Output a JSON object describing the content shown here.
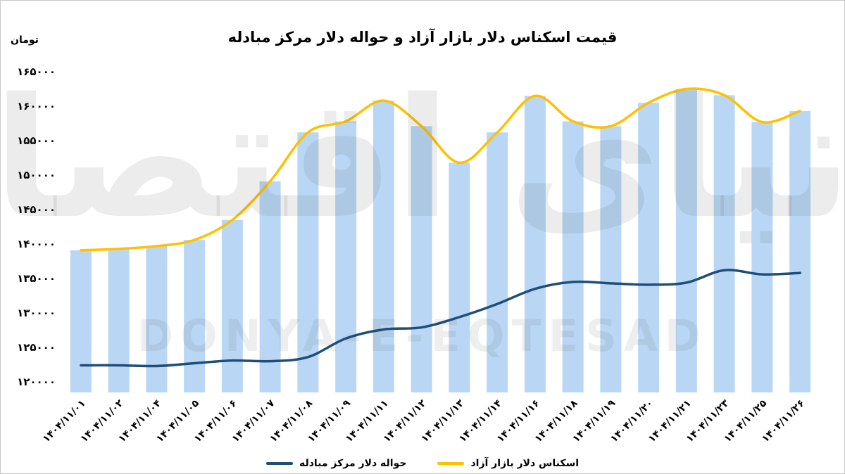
{
  "chart": {
    "title": "قیمت اسکناس دلار بازار آزاد و حواله دلار مرکز مبادله",
    "unit_label": "تومان"
  },
  "watermark": {
    "fa": "دنیای اقتصاد",
    "en": "DONYA-E-EQTESAD"
  },
  "chart_data": {
    "type": "bar",
    "title": "قیمت اسکناس دلار بازار آزاد و حواله دلار مرکز مبادله",
    "ylabel": "تومان",
    "ylim": [
      120000,
      165000
    ],
    "y_ticks": [
      165000,
      160000,
      155000,
      150000,
      145000,
      140000,
      135000,
      130000,
      125000,
      120000
    ],
    "grid": false,
    "legend_position": "bottom",
    "categories": [
      "۱۴۰۴/۱۱/۰۱",
      "۱۴۰۴/۱۱/۰۲",
      "۱۴۰۴/۱۱/۰۴",
      "۱۴۰۴/۱۱/۰۵",
      "۱۴۰۴/۱۱/۰۶",
      "۱۴۰۴/۱۱/۰۷",
      "۱۴۰۴/۱۱/۰۸",
      "۱۴۰۴/۱۱/۰۹",
      "۱۴۰۴/۱۱/۱۱",
      "۱۴۰۴/۱۱/۱۲",
      "۱۴۰۴/۱۱/۱۳",
      "۱۴۰۴/۱۱/۱۴",
      "۱۴۰۴/۱۱/۱۶",
      "۱۴۰۴/۱۱/۱۸",
      "۱۴۰۴/۱۱/۱۹",
      "۱۴۰۴/۱۱/۲۰",
      "۱۴۰۴/۱۱/۲۱",
      "۱۴۰۴/۱۱/۲۳",
      "۱۴۰۴/۱۱/۲۵",
      "۱۴۰۴/۱۱/۲۶"
    ],
    "series": [
      {
        "name": "اسکناس دلار بازار آزاد",
        "render": "bar-with-line-top",
        "color": "#FFC000",
        "bar_color": "#B9D7F4",
        "values": [
          139100,
          139300,
          139700,
          140600,
          143500,
          149100,
          156200,
          157800,
          160800,
          157100,
          151800,
          156200,
          161500,
          157800,
          157100,
          160500,
          162500,
          161600,
          157700,
          159300
        ]
      },
      {
        "name": "حواله دلار مرکز مبادله",
        "render": "line",
        "color": "#1F4E79",
        "values": [
          122400,
          122400,
          122300,
          122700,
          123100,
          123000,
          123600,
          126300,
          127600,
          127900,
          129400,
          131300,
          133500,
          134500,
          134300,
          134100,
          134400,
          136200,
          135600,
          135800
        ]
      }
    ]
  }
}
